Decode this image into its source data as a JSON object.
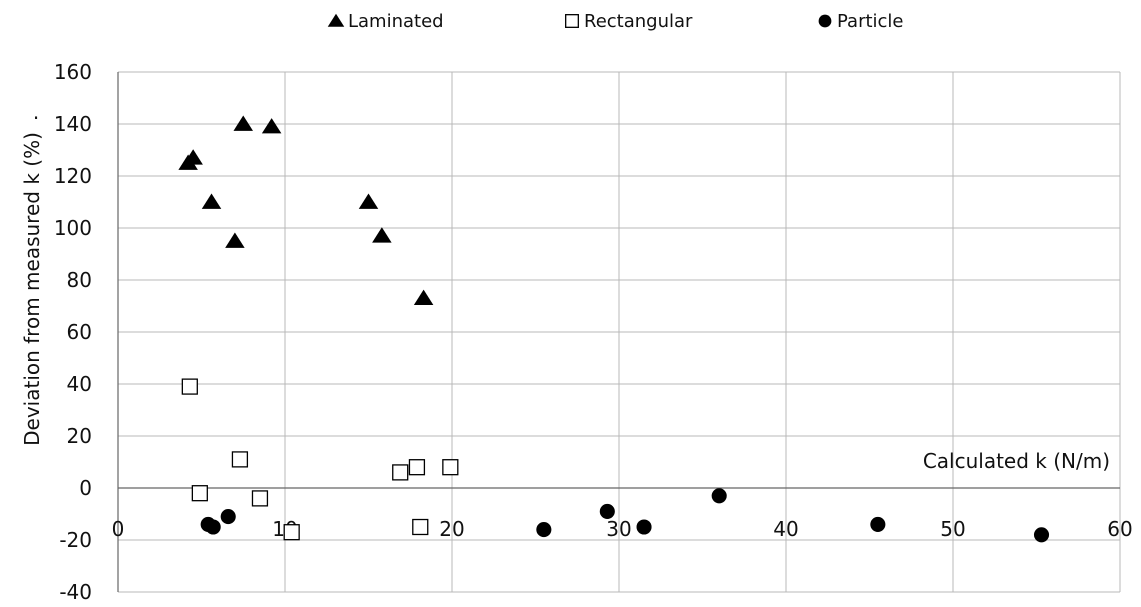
{
  "chart_data": {
    "type": "scatter",
    "title": "",
    "xlabel": "Calculated k (N/m)",
    "ylabel": "Deviation from measured k (%)",
    "xlim": [
      0,
      60
    ],
    "ylim": [
      -40,
      160
    ],
    "xticks": [
      0,
      10,
      20,
      30,
      40,
      50,
      60
    ],
    "yticks": [
      -40,
      -20,
      0,
      20,
      40,
      60,
      80,
      100,
      120,
      140,
      160
    ],
    "grid": true,
    "legend_position": "top",
    "series": [
      {
        "name": "Laminated",
        "marker": "triangle",
        "color": "#000000",
        "points": [
          {
            "x": 4.2,
            "y": 125
          },
          {
            "x": 4.5,
            "y": 127
          },
          {
            "x": 5.6,
            "y": 110
          },
          {
            "x": 7.0,
            "y": 95
          },
          {
            "x": 7.5,
            "y": 140
          },
          {
            "x": 9.2,
            "y": 139
          },
          {
            "x": 15.0,
            "y": 110
          },
          {
            "x": 15.8,
            "y": 97
          },
          {
            "x": 18.3,
            "y": 73
          }
        ]
      },
      {
        "name": "Rectangular",
        "marker": "square",
        "color": "#000000",
        "points": [
          {
            "x": 4.3,
            "y": 39
          },
          {
            "x": 4.9,
            "y": -2
          },
          {
            "x": 7.3,
            "y": 11
          },
          {
            "x": 8.5,
            "y": -4
          },
          {
            "x": 10.4,
            "y": -17
          },
          {
            "x": 16.9,
            "y": 6
          },
          {
            "x": 17.9,
            "y": 8
          },
          {
            "x": 18.1,
            "y": -15
          },
          {
            "x": 19.9,
            "y": 8
          }
        ]
      },
      {
        "name": "Particle",
        "marker": "circle",
        "color": "#000000",
        "points": [
          {
            "x": 5.4,
            "y": -14
          },
          {
            "x": 5.7,
            "y": -15
          },
          {
            "x": 6.6,
            "y": -11
          },
          {
            "x": 25.5,
            "y": -16
          },
          {
            "x": 29.3,
            "y": -9
          },
          {
            "x": 31.5,
            "y": -15
          },
          {
            "x": 36.0,
            "y": -3
          },
          {
            "x": 45.5,
            "y": -14
          },
          {
            "x": 55.3,
            "y": -18
          }
        ]
      }
    ]
  },
  "stray_mark": "·"
}
